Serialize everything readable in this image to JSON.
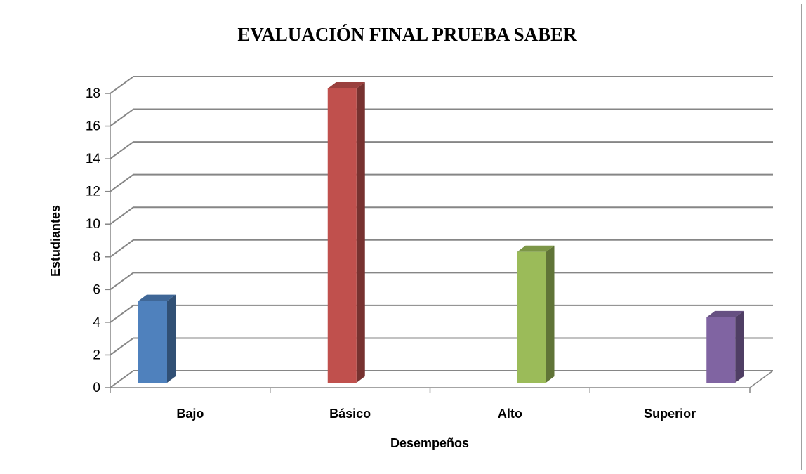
{
  "chart_data": {
    "type": "bar3d",
    "title": "EVALUACIÓN FINAL PRUEBA SABER",
    "x_label": "Desempeños",
    "y_label": "Estudiantes",
    "categories": [
      "Bajo",
      "Básico",
      "Alto",
      "Superior"
    ],
    "values": [
      5,
      18,
      8,
      4
    ],
    "colors": [
      "#4f81bd",
      "#c0504d",
      "#9bbb59",
      "#8064a2"
    ],
    "ylim": [
      0,
      18
    ],
    "yticks": [
      0,
      2,
      4,
      6,
      8,
      10,
      12,
      14,
      16,
      18
    ],
    "grid": true
  }
}
